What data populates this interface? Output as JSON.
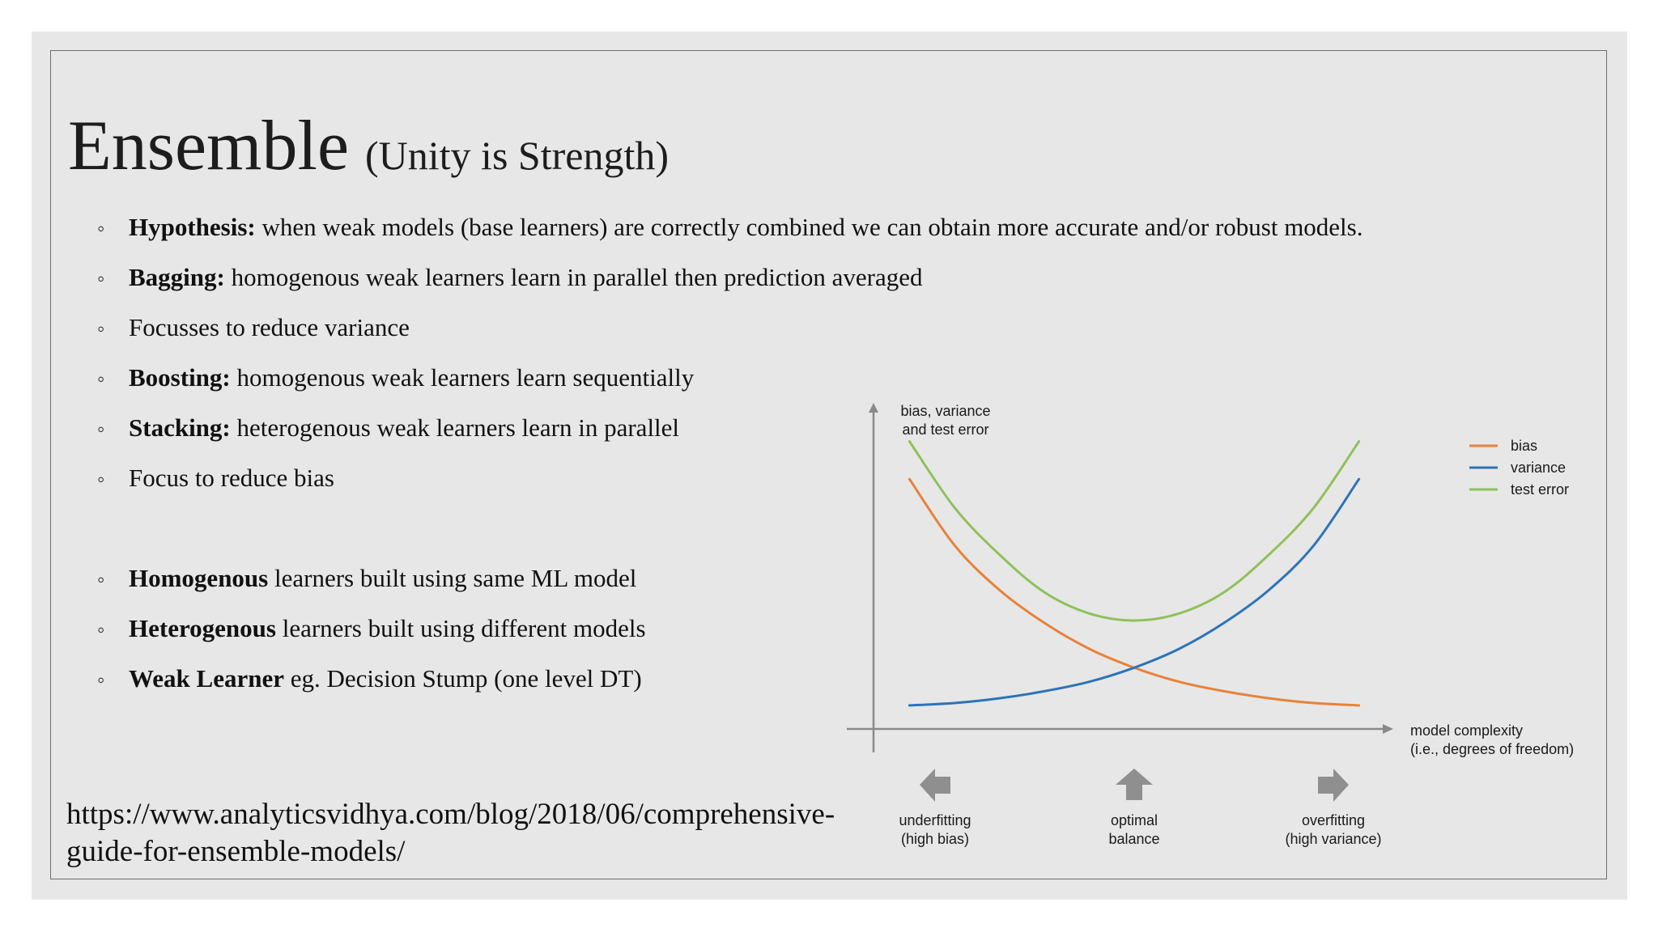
{
  "title": {
    "main": "Ensemble",
    "sub": "(Unity is Strength)"
  },
  "bullets_top": [
    {
      "bold": "Hypothesis:",
      "text": " when weak models (base learners) are correctly combined we can obtain more accurate and/or robust models."
    },
    {
      "bold": "Bagging:",
      "text": " homogenous weak learners learn in parallel then prediction averaged"
    },
    {
      "bold": "",
      "text": "Focusses to reduce variance"
    },
    {
      "bold": "Boosting:",
      "text": " homogenous weak learners learn sequentially"
    },
    {
      "bold": "Stacking:",
      "text": " heterogenous weak learners learn in parallel"
    },
    {
      "bold": "",
      "text": "Focus to reduce bias"
    }
  ],
  "bullets_bottom": [
    {
      "bold": "Homogenous",
      "text": " learners built using same ML model"
    },
    {
      "bold": "Heterogenous",
      "text": " learners built using different models"
    },
    {
      "bold": "Weak Learner",
      "text": " eg. Decision Stump (one level DT)"
    }
  ],
  "bullet_symbol": "◦",
  "source": {
    "line1": "https://www.analyticsvidhya.com/blog/2018/06/comprehensive-",
    "line2": "guide-for-ensemble-models/"
  },
  "chart_data": {
    "type": "line",
    "ylabel": [
      "bias, variance",
      "and test error"
    ],
    "xlabel": [
      "model complexity",
      "(i.e., degrees of freedom)"
    ],
    "x": [
      0,
      0.1,
      0.2,
      0.3,
      0.4,
      0.5,
      0.6,
      0.7,
      0.8,
      0.9,
      1.0
    ],
    "series": [
      {
        "name": "bias",
        "color": "#e8823a",
        "values": [
          0.94,
          0.66,
          0.47,
          0.33,
          0.22,
          0.14,
          0.08,
          0.04,
          0.01,
          -0.01,
          -0.02
        ]
      },
      {
        "name": "variance",
        "color": "#2d74b8",
        "values": [
          -0.02,
          -0.01,
          0.01,
          0.04,
          0.08,
          0.14,
          0.22,
          0.33,
          0.47,
          0.66,
          0.94
        ]
      },
      {
        "name": "test error",
        "color": "#8fc15a",
        "values": [
          1.1,
          0.82,
          0.62,
          0.46,
          0.37,
          0.34,
          0.37,
          0.46,
          0.62,
          0.82,
          1.1
        ]
      }
    ],
    "ylim": [
      -0.12,
      1.26
    ],
    "xlim": [
      -0.08,
      1.08
    ],
    "annotations": [
      {
        "icon": "arrow-left-icon",
        "lines": [
          "underfitting",
          "(high bias)"
        ]
      },
      {
        "icon": "arrow-up-icon",
        "lines": [
          "optimal",
          "balance"
        ]
      },
      {
        "icon": "arrow-right-icon",
        "lines": [
          "overfitting",
          "(high variance)"
        ]
      }
    ],
    "legend_position": "top-right",
    "grid": false,
    "axis_color": "#8a8a8a",
    "arrow_icon_color": "#8f8f8f"
  }
}
